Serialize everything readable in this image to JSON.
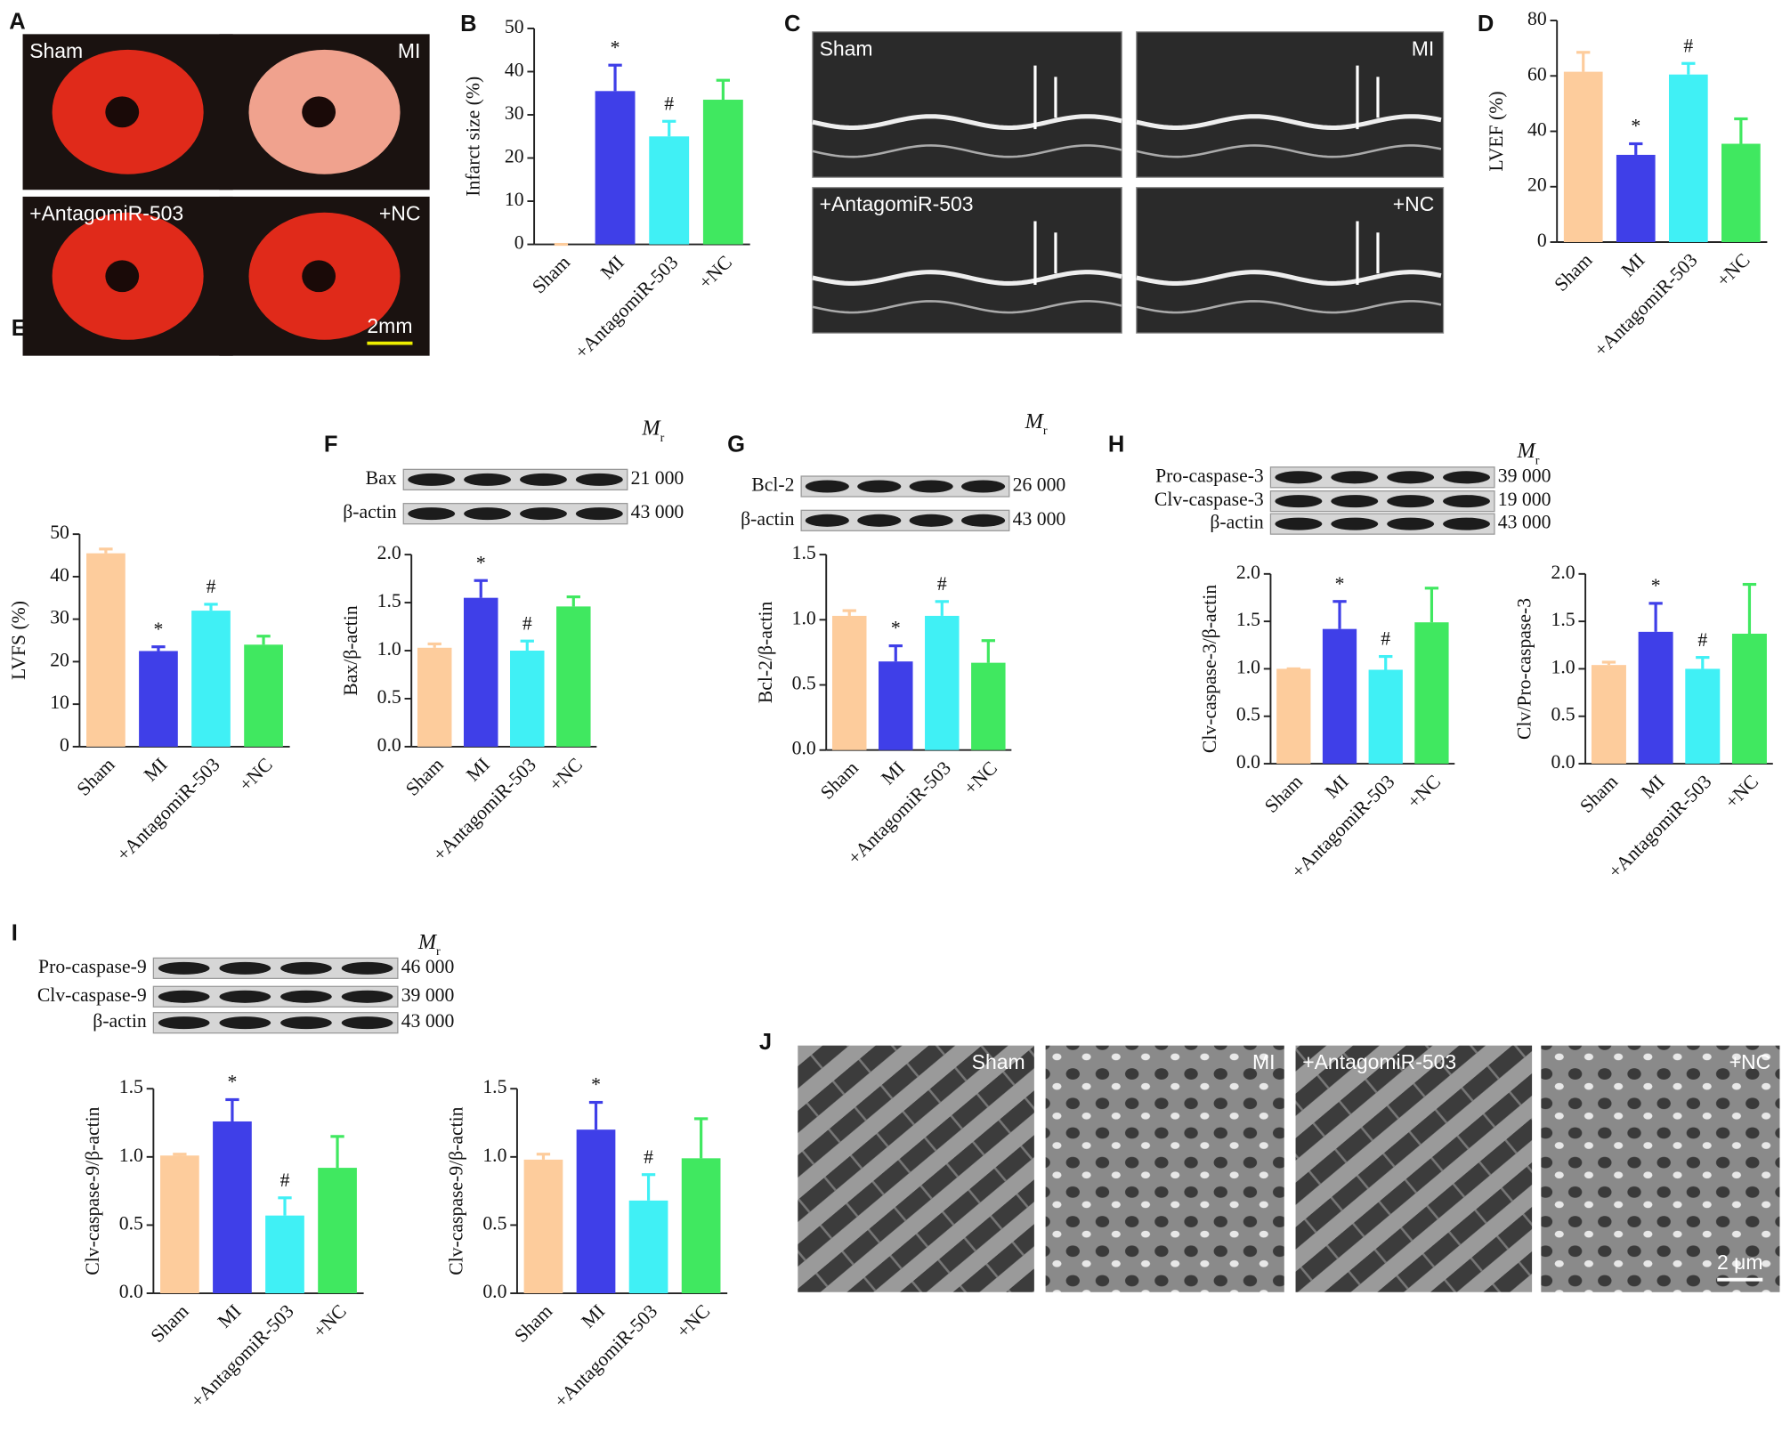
{
  "panel_labels": [
    "A",
    "B",
    "C",
    "D",
    "E",
    "F",
    "G",
    "H",
    "I",
    "J"
  ],
  "photos": {
    "A": {
      "labels": [
        "Sham",
        "MI",
        "+AntagomiR-503",
        "+NC"
      ],
      "scale": "2mm"
    },
    "C": {
      "labels": [
        "Sham",
        "MI",
        "+AntagomiR-503",
        "+NC"
      ]
    },
    "J": {
      "labels": [
        "Sham",
        "MI",
        "+AntagomiR-503",
        "+NC"
      ],
      "scale": "2 μm"
    }
  },
  "blots": [
    {
      "mr": [
        "M",
        "r"
      ],
      "rows": [
        "Bax",
        "β-actin"
      ],
      "weights": [
        "21 000",
        "43 000"
      ]
    },
    {
      "mr": [
        "M",
        "r"
      ],
      "rows": [
        "Bcl-2",
        "β-actin"
      ],
      "weights": [
        "26 000",
        "43 000"
      ]
    },
    {
      "mr": [
        "M",
        "r"
      ],
      "rows": [
        "Pro-caspase-3",
        "Clv-caspase-3",
        "β-actin"
      ],
      "weights": [
        "39 000",
        "19 000",
        "43 000"
      ]
    },
    {
      "mr": [
        "M",
        "r"
      ],
      "rows": [
        "Pro-caspase-9",
        "Clv-caspase-9",
        "β-actin"
      ],
      "weights": [
        "46 000",
        "39 000",
        "43 000"
      ]
    }
  ],
  "chart_data": [
    {
      "type": "bar",
      "ylabel": "Infarct size (%)",
      "categories": [
        "Sham",
        "MI",
        "+AntagomiR-503",
        "+NC"
      ],
      "values": [
        0,
        35.5,
        25,
        33.5
      ],
      "errors": [
        0,
        6,
        3.5,
        4.5
      ],
      "colors": [
        "#fdcc9c",
        "#3f3fe8",
        "#40f0f5",
        "#40e860"
      ],
      "annotations": [
        {
          "index": 1,
          "text": "*"
        },
        {
          "index": 2,
          "text": "#"
        }
      ],
      "ylim": [
        0,
        50
      ],
      "yticks": [
        0,
        10,
        20,
        30,
        40,
        50
      ]
    },
    {
      "type": "bar",
      "ylabel": "LVEF (%)",
      "categories": [
        "Sham",
        "MI",
        "+AntagomiR-503",
        "+NC"
      ],
      "values": [
        61.5,
        31.5,
        60.5,
        35.5
      ],
      "errors": [
        7,
        4,
        4,
        9
      ],
      "colors": [
        "#fdcc9c",
        "#3f3fe8",
        "#40f0f5",
        "#40e860"
      ],
      "annotations": [
        {
          "index": 1,
          "text": "*"
        },
        {
          "index": 2,
          "text": "#"
        }
      ],
      "ylim": [
        0,
        80
      ],
      "yticks": [
        0,
        20,
        40,
        60,
        80
      ]
    },
    {
      "type": "bar",
      "ylabel": "LVFS (%)",
      "categories": [
        "Sham",
        "MI",
        "+AntagomiR-503",
        "+NC"
      ],
      "values": [
        45.5,
        22.5,
        32,
        24
      ],
      "errors": [
        1,
        1,
        1.5,
        2
      ],
      "colors": [
        "#fdcc9c",
        "#3f3fe8",
        "#40f0f5",
        "#40e860"
      ],
      "annotations": [
        {
          "index": 1,
          "text": "*"
        },
        {
          "index": 2,
          "text": "#"
        }
      ],
      "ylim": [
        0,
        50
      ],
      "yticks": [
        0,
        10,
        20,
        30,
        40,
        50
      ]
    },
    {
      "type": "bar",
      "ylabel": "Bax/β-actin",
      "categories": [
        "Sham",
        "MI",
        "+AntagomiR-503",
        "+NC"
      ],
      "values": [
        1.03,
        1.55,
        1.0,
        1.46
      ],
      "errors": [
        0.04,
        0.18,
        0.1,
        0.1
      ],
      "colors": [
        "#fdcc9c",
        "#3f3fe8",
        "#40f0f5",
        "#40e860"
      ],
      "annotations": [
        {
          "index": 1,
          "text": "*"
        },
        {
          "index": 2,
          "text": "#"
        }
      ],
      "ylim": [
        0,
        2
      ],
      "yticks": [
        {
          "value": 0,
          "label": "0.0"
        },
        0.5,
        {
          "value": 1,
          "label": "1.0"
        },
        1.5,
        {
          "value": 2,
          "label": "2.0"
        }
      ]
    },
    {
      "type": "bar",
      "ylabel": "Bcl-2/β-actin",
      "categories": [
        "Sham",
        "MI",
        "+AntagomiR-503",
        "+NC"
      ],
      "values": [
        1.03,
        0.68,
        1.03,
        0.67
      ],
      "errors": [
        0.04,
        0.12,
        0.11,
        0.17
      ],
      "colors": [
        "#fdcc9c",
        "#3f3fe8",
        "#40f0f5",
        "#40e860"
      ],
      "annotations": [
        {
          "index": 1,
          "text": "*"
        },
        {
          "index": 2,
          "text": "#"
        }
      ],
      "ylim": [
        0,
        1.5
      ],
      "yticks": [
        {
          "value": 0,
          "label": "0.0"
        },
        0.5,
        {
          "value": 1,
          "label": "1.0"
        },
        1.5
      ]
    },
    {
      "type": "bar",
      "ylabel": "Clv-caspase-3/β-actin",
      "categories": [
        "Sham",
        "MI",
        "+AntagomiR-503",
        "+NC"
      ],
      "values": [
        1.0,
        1.42,
        0.99,
        1.49
      ],
      "errors": [
        0,
        0.29,
        0.14,
        0.36
      ],
      "colors": [
        "#fdcc9c",
        "#3f3fe8",
        "#40f0f5",
        "#40e860"
      ],
      "annotations": [
        {
          "index": 1,
          "text": "*"
        },
        {
          "index": 2,
          "text": "#"
        }
      ],
      "ylim": [
        0,
        2
      ],
      "yticks": [
        {
          "value": 0,
          "label": "0.0"
        },
        0.5,
        {
          "value": 1,
          "label": "1.0"
        },
        1.5,
        {
          "value": 2,
          "label": "2.0"
        }
      ]
    },
    {
      "type": "bar",
      "ylabel": "Clv/Pro-caspase-3",
      "categories": [
        "Sham",
        "MI",
        "+AntagomiR-503",
        "+NC"
      ],
      "values": [
        1.04,
        1.39,
        1.0,
        1.37
      ],
      "errors": [
        0.03,
        0.3,
        0.12,
        0.52
      ],
      "colors": [
        "#fdcc9c",
        "#3f3fe8",
        "#40f0f5",
        "#40e860"
      ],
      "annotations": [
        {
          "index": 1,
          "text": "*"
        },
        {
          "index": 2,
          "text": "#"
        }
      ],
      "ylim": [
        0,
        2
      ],
      "yticks": [
        {
          "value": 0,
          "label": "0.0"
        },
        0.5,
        {
          "value": 1,
          "label": "1.0"
        },
        1.5,
        {
          "value": 2,
          "label": "2.0"
        }
      ]
    },
    {
      "type": "bar",
      "ylabel": "Clv-caspase-9/β-actin",
      "categories": [
        "Sham",
        "MI",
        "+AntagomiR-503",
        "+NC"
      ],
      "values": [
        1.01,
        1.26,
        0.57,
        0.92
      ],
      "errors": [
        0.01,
        0.16,
        0.13,
        0.23
      ],
      "colors": [
        "#fdcc9c",
        "#3f3fe8",
        "#40f0f5",
        "#40e860"
      ],
      "annotations": [
        {
          "index": 1,
          "text": "*"
        },
        {
          "index": 2,
          "text": "#"
        }
      ],
      "ylim": [
        0,
        1.5
      ],
      "yticks": [
        {
          "value": 0,
          "label": "0.0"
        },
        0.5,
        {
          "value": 1,
          "label": "1.0"
        },
        1.5
      ]
    },
    {
      "type": "bar",
      "ylabel": "Clv-caspase-9/β-actin",
      "categories": [
        "Sham",
        "MI",
        "+AntagomiR-503",
        "+NC"
      ],
      "values": [
        0.98,
        1.2,
        0.68,
        0.99
      ],
      "errors": [
        0.04,
        0.2,
        0.19,
        0.29
      ],
      "colors": [
        "#fdcc9c",
        "#3f3fe8",
        "#40f0f5",
        "#40e860"
      ],
      "annotations": [
        {
          "index": 1,
          "text": "*"
        },
        {
          "index": 2,
          "text": "#"
        }
      ],
      "ylim": [
        0,
        1.5
      ],
      "yticks": [
        {
          "value": 0,
          "label": "0.0"
        },
        0.5,
        {
          "value": 1,
          "label": "1.0"
        },
        1.5
      ]
    }
  ]
}
